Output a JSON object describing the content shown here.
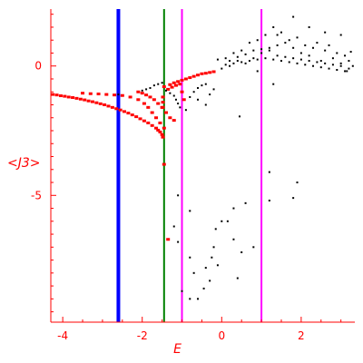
{
  "chart_data": {
    "type": "scatter",
    "title": "",
    "xlabel": "E",
    "ylabel": "<J3>",
    "xlim": [
      -4.3,
      3.35
    ],
    "ylim": [
      -9.9,
      2.2
    ],
    "xticks": [
      -4,
      -2,
      0,
      2
    ],
    "yticks": [
      0,
      -5
    ],
    "xtick_labels": [
      "-4",
      "-2",
      "0",
      "2"
    ],
    "ytick_labels": [
      "0",
      "-5"
    ],
    "colors": {
      "axis": "#ff0000",
      "series_red": "#ff0000",
      "series_black": "#000000",
      "blue_line": "#0000ff",
      "green_line": "#008000",
      "magenta_line": "#ff00ff"
    },
    "vertical_lines": [
      {
        "x": -2.6,
        "color": "#0000ff"
      },
      {
        "x": -1.45,
        "color": "#008000"
      },
      {
        "x": -1.0,
        "color": "#ff00ff"
      },
      {
        "x": 1.0,
        "color": "#ff00ff"
      }
    ],
    "series": [
      {
        "color": "#ff0000",
        "points": [
          [
            -4.25,
            -1.1
          ],
          [
            -4.15,
            -1.12
          ],
          [
            -4.05,
            -1.15
          ],
          [
            -3.95,
            -1.17
          ],
          [
            -3.85,
            -1.2
          ],
          [
            -3.75,
            -1.22
          ],
          [
            -3.65,
            -1.25
          ],
          [
            -3.55,
            -1.28
          ],
          [
            -3.45,
            -1.31
          ],
          [
            -3.35,
            -1.35
          ],
          [
            -3.25,
            -1.38
          ],
          [
            -3.15,
            -1.42
          ],
          [
            -3.05,
            -1.46
          ],
          [
            -2.95,
            -1.5
          ],
          [
            -2.85,
            -1.55
          ],
          [
            -2.75,
            -1.6
          ],
          [
            -2.65,
            -1.65
          ],
          [
            -2.55,
            -1.7
          ],
          [
            -2.45,
            -1.76
          ],
          [
            -2.35,
            -1.82
          ],
          [
            -2.25,
            -1.89
          ],
          [
            -2.15,
            -1.96
          ],
          [
            -2.05,
            -2.04
          ],
          [
            -1.95,
            -2.12
          ],
          [
            -1.85,
            -2.2
          ],
          [
            -1.75,
            -2.3
          ],
          [
            -1.65,
            -2.4
          ],
          [
            -1.6,
            -2.48
          ],
          [
            -1.55,
            -2.55
          ],
          [
            -1.5,
            -2.65
          ],
          [
            -1.48,
            -2.75
          ],
          [
            -3.5,
            -1.05
          ],
          [
            -3.3,
            -1.07
          ],
          [
            -3.1,
            -1.08
          ],
          [
            -2.9,
            -1.1
          ],
          [
            -2.7,
            -1.12
          ],
          [
            -2.5,
            -1.14
          ],
          [
            -2.3,
            -1.2
          ],
          [
            -2.1,
            -1.3
          ],
          [
            -1.95,
            -1.45
          ],
          [
            -1.85,
            -1.6
          ],
          [
            -1.75,
            -1.8
          ],
          [
            -1.65,
            -2.0
          ],
          [
            -1.55,
            -2.2
          ],
          [
            -1.45,
            -2.4
          ],
          [
            -2.1,
            -1.0
          ],
          [
            -2.0,
            -1.05
          ],
          [
            -1.9,
            -1.12
          ],
          [
            -1.8,
            -1.2
          ],
          [
            -1.7,
            -1.3
          ],
          [
            -1.6,
            -1.45
          ],
          [
            -1.5,
            -1.6
          ],
          [
            -1.4,
            -1.8
          ],
          [
            -1.3,
            -2.0
          ],
          [
            -1.2,
            -2.1
          ],
          [
            -1.45,
            -0.8
          ],
          [
            -1.3,
            -0.72
          ],
          [
            -1.2,
            -0.65
          ],
          [
            -1.1,
            -0.6
          ],
          [
            -1.0,
            -0.55
          ],
          [
            -0.9,
            -0.5
          ],
          [
            -0.8,
            -0.45
          ],
          [
            -0.7,
            -0.4
          ],
          [
            -0.6,
            -0.35
          ],
          [
            -0.5,
            -0.3
          ],
          [
            -0.4,
            -0.28
          ],
          [
            -0.3,
            -0.25
          ],
          [
            -0.2,
            -0.22
          ],
          [
            -1.35,
            -0.9
          ],
          [
            -1.25,
            -0.82
          ],
          [
            -1.15,
            -0.75
          ],
          [
            -1.05,
            -0.7
          ],
          [
            -1.45,
            -3.8
          ],
          [
            -1.35,
            -6.7
          ],
          [
            -1.48,
            -1.2
          ],
          [
            -1.48,
            -1.4
          ],
          [
            -1.48,
            -1.6
          ],
          [
            -1.0,
            -1.0
          ],
          [
            -0.95,
            -1.3
          ]
        ]
      },
      {
        "color": "#000000",
        "points": [
          [
            -2.6,
            -1.1
          ],
          [
            -2.0,
            -0.95
          ],
          [
            -1.9,
            -0.9
          ],
          [
            -1.8,
            -0.85
          ],
          [
            -1.7,
            -0.75
          ],
          [
            -1.6,
            -0.7
          ],
          [
            -1.5,
            -0.65
          ],
          [
            -1.4,
            -0.95
          ],
          [
            -1.3,
            -1.05
          ],
          [
            -1.2,
            -1.15
          ],
          [
            -1.15,
            -1.3
          ],
          [
            -1.1,
            -1.45
          ],
          [
            -1.05,
            -1.6
          ],
          [
            -0.9,
            -1.7
          ],
          [
            -0.8,
            -1.2
          ],
          [
            -0.7,
            -1.0
          ],
          [
            -0.6,
            -0.85
          ],
          [
            -0.5,
            -0.75
          ],
          [
            -0.4,
            -0.7
          ],
          [
            -0.6,
            -1.3
          ],
          [
            -0.3,
            -1.1
          ],
          [
            -0.2,
            -0.9
          ],
          [
            -0.4,
            -1.5
          ],
          [
            0.45,
            -1.95
          ],
          [
            0.9,
            -0.2
          ],
          [
            1.3,
            -0.7
          ],
          [
            -0.1,
            0.25
          ],
          [
            0.1,
            0.3
          ],
          [
            0.2,
            0.0
          ],
          [
            0.3,
            0.5
          ],
          [
            0.4,
            0.2
          ],
          [
            0.5,
            0.6
          ],
          [
            0.6,
            0.1
          ],
          [
            0.7,
            0.9
          ],
          [
            0.8,
            0.3
          ],
          [
            0.9,
            1.0
          ],
          [
            1.0,
            0.5
          ],
          [
            1.1,
            1.2
          ],
          [
            1.2,
            0.6
          ],
          [
            1.3,
            1.5
          ],
          [
            1.4,
            0.8
          ],
          [
            1.5,
            1.3
          ],
          [
            1.6,
            0.9
          ],
          [
            1.7,
            1.0
          ],
          [
            1.8,
            0.7
          ],
          [
            1.9,
            1.1
          ],
          [
            2.0,
            0.5
          ],
          [
            2.1,
            0.8
          ],
          [
            2.2,
            0.4
          ],
          [
            2.3,
            0.7
          ],
          [
            2.4,
            0.9
          ],
          [
            2.5,
            0.2
          ],
          [
            2.6,
            0.6
          ],
          [
            2.7,
            0.8
          ],
          [
            2.8,
            0.3
          ],
          [
            2.9,
            0.5
          ],
          [
            3.0,
            0.1
          ],
          [
            3.1,
            0.4
          ],
          [
            3.2,
            0.2
          ],
          [
            3.3,
            0.0
          ],
          [
            3.25,
            0.55
          ],
          [
            3.15,
            -0.2
          ],
          [
            0.0,
            -0.1
          ],
          [
            0.2,
            0.2
          ],
          [
            0.4,
            0.35
          ],
          [
            0.6,
            0.45
          ],
          [
            0.8,
            0.6
          ],
          [
            1.0,
            0.65
          ],
          [
            1.2,
            0.7
          ],
          [
            1.4,
            0.4
          ],
          [
            1.6,
            0.35
          ],
          [
            1.8,
            0.3
          ],
          [
            2.0,
            0.25
          ],
          [
            2.2,
            0.2
          ],
          [
            2.4,
            0.15
          ],
          [
            2.6,
            0.1
          ],
          [
            2.8,
            0.05
          ],
          [
            3.0,
            0.0
          ],
          [
            3.2,
            -0.1
          ],
          [
            0.1,
            0.05
          ],
          [
            0.3,
            0.1
          ],
          [
            0.5,
            0.15
          ],
          [
            0.7,
            0.2
          ],
          [
            0.9,
            0.25
          ],
          [
            1.1,
            0.3
          ],
          [
            1.3,
            0.25
          ],
          [
            1.5,
            0.2
          ],
          [
            1.7,
            0.15
          ],
          [
            1.9,
            0.1
          ],
          [
            2.1,
            0.05
          ],
          [
            2.3,
            0.0
          ],
          [
            2.5,
            -0.05
          ],
          [
            2.7,
            -0.1
          ],
          [
            2.9,
            -0.15
          ],
          [
            3.1,
            -0.2
          ],
          [
            1.8,
            1.9
          ],
          [
            1.4,
            1.2
          ],
          [
            2.2,
            1.5
          ],
          [
            2.6,
            1.3
          ],
          [
            3.0,
            1.2
          ],
          [
            1.2,
            -4.1
          ],
          [
            1.8,
            -5.1
          ],
          [
            1.2,
            -5.2
          ],
          [
            1.9,
            -4.5
          ],
          [
            0.6,
            -5.3
          ],
          [
            0.0,
            -6.0
          ],
          [
            -0.2,
            -7.0
          ],
          [
            -0.4,
            -7.8
          ],
          [
            -0.6,
            -9.0
          ],
          [
            -0.7,
            -8.0
          ],
          [
            -0.8,
            -7.4
          ],
          [
            -1.0,
            -8.7
          ],
          [
            -1.2,
            -6.2
          ],
          [
            -1.1,
            -5.0
          ],
          [
            -0.8,
            -5.6
          ],
          [
            0.4,
            -8.2
          ],
          [
            -0.1,
            -7.7
          ],
          [
            0.3,
            -6.7
          ],
          [
            0.5,
            -7.2
          ],
          [
            0.8,
            -7.0
          ],
          [
            -0.3,
            -8.3
          ],
          [
            -0.25,
            -7.4
          ],
          [
            -0.45,
            -8.6
          ],
          [
            -0.8,
            -9.0
          ],
          [
            -0.15,
            -6.3
          ],
          [
            0.15,
            -6.0
          ],
          [
            0.3,
            -5.5
          ],
          [
            -1.1,
            -6.8
          ]
        ]
      }
    ]
  }
}
